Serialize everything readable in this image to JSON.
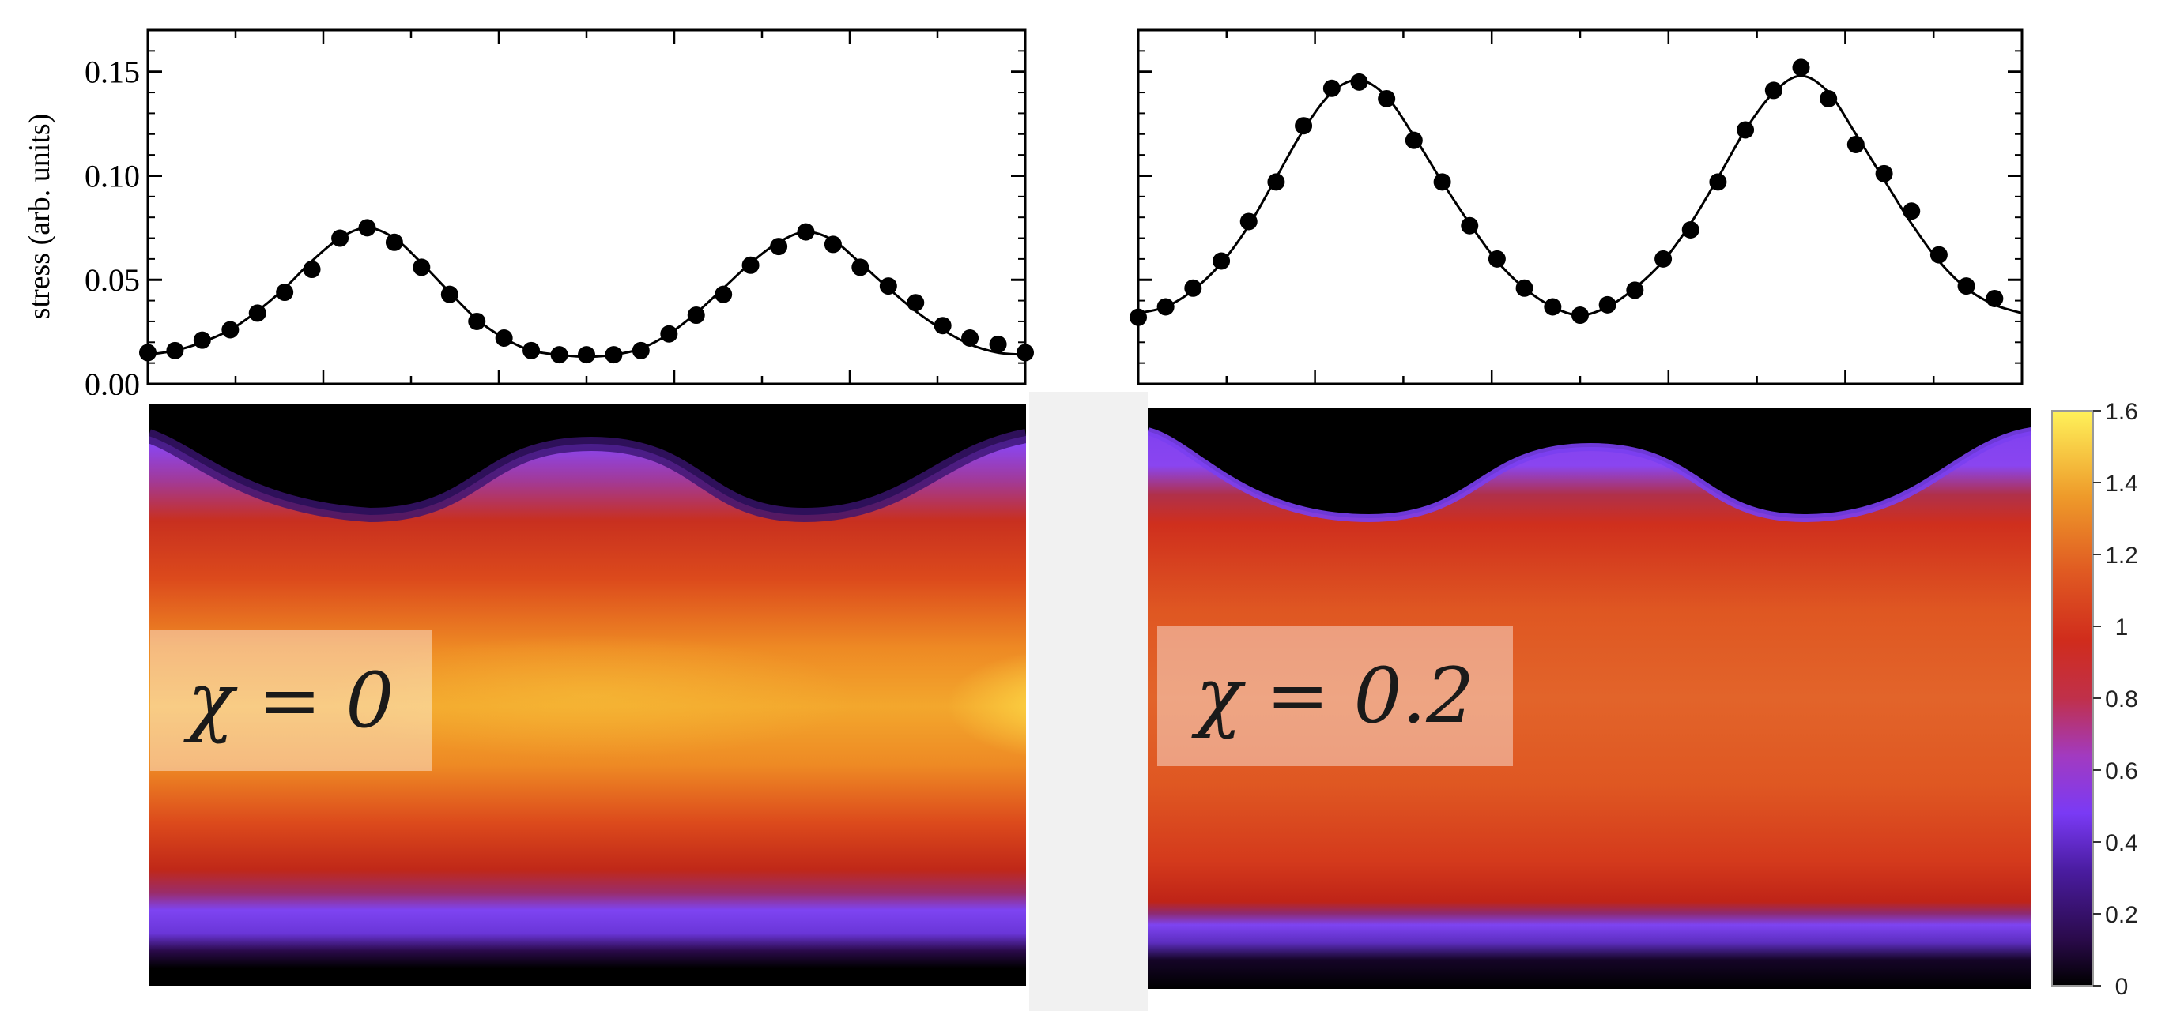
{
  "chart_data": [
    {
      "type": "scatter",
      "panel": "left-stress",
      "title": "",
      "xlabel": "",
      "ylabel": "stress (arb. units)",
      "xlim": [
        0,
        1
      ],
      "ylim": [
        0.0,
        0.17
      ],
      "yticks": [
        "0.00",
        "0.05",
        "0.10",
        "0.15"
      ],
      "grid": false,
      "series": [
        {
          "kind": "points",
          "x": [
            0.0,
            0.031,
            0.062,
            0.094,
            0.125,
            0.156,
            0.187,
            0.219,
            0.25,
            0.281,
            0.312,
            0.344,
            0.375,
            0.406,
            0.437,
            0.469,
            0.5,
            0.531,
            0.562,
            0.594,
            0.625,
            0.656,
            0.687,
            0.719,
            0.75,
            0.781,
            0.812,
            0.844,
            0.875,
            0.906,
            0.937,
            0.969,
            1.0
          ],
          "y": [
            0.015,
            0.016,
            0.021,
            0.026,
            0.034,
            0.044,
            0.055,
            0.07,
            0.075,
            0.068,
            0.056,
            0.043,
            0.03,
            0.022,
            0.016,
            0.014,
            0.014,
            0.014,
            0.016,
            0.024,
            0.033,
            0.043,
            0.057,
            0.066,
            0.073,
            0.067,
            0.056,
            0.047,
            0.039,
            0.028,
            0.022,
            0.019,
            0.015
          ]
        },
        {
          "kind": "line",
          "x": [
            0.0,
            0.031,
            0.062,
            0.094,
            0.125,
            0.156,
            0.187,
            0.219,
            0.25,
            0.281,
            0.312,
            0.344,
            0.375,
            0.406,
            0.437,
            0.469,
            0.5,
            0.531,
            0.562,
            0.594,
            0.625,
            0.656,
            0.687,
            0.719,
            0.75,
            0.781,
            0.812,
            0.844,
            0.875,
            0.906,
            0.937,
            0.969,
            1.0
          ],
          "y": [
            0.014,
            0.016,
            0.02,
            0.026,
            0.035,
            0.046,
            0.059,
            0.07,
            0.075,
            0.07,
            0.058,
            0.044,
            0.031,
            0.022,
            0.016,
            0.014,
            0.013,
            0.014,
            0.017,
            0.024,
            0.034,
            0.046,
            0.058,
            0.068,
            0.073,
            0.069,
            0.058,
            0.046,
            0.035,
            0.026,
            0.019,
            0.015,
            0.014
          ]
        }
      ]
    },
    {
      "type": "scatter",
      "panel": "right-stress",
      "title": "",
      "xlabel": "",
      "ylabel": "",
      "xlim": [
        0,
        1
      ],
      "ylim": [
        0.0,
        0.17
      ],
      "grid": false,
      "series": [
        {
          "kind": "points",
          "x": [
            0.0,
            0.031,
            0.062,
            0.094,
            0.125,
            0.156,
            0.187,
            0.219,
            0.25,
            0.281,
            0.312,
            0.344,
            0.375,
            0.406,
            0.437,
            0.469,
            0.5,
            0.531,
            0.562,
            0.594,
            0.625,
            0.656,
            0.687,
            0.719,
            0.75,
            0.781,
            0.812,
            0.844,
            0.875,
            0.906,
            0.937,
            0.969
          ],
          "y": [
            0.032,
            0.037,
            0.046,
            0.059,
            0.078,
            0.097,
            0.124,
            0.142,
            0.145,
            0.137,
            0.117,
            0.097,
            0.076,
            0.06,
            0.046,
            0.037,
            0.033,
            0.038,
            0.045,
            0.06,
            0.074,
            0.097,
            0.122,
            0.141,
            0.152,
            0.137,
            0.115,
            0.101,
            0.083,
            0.062,
            0.047,
            0.041
          ]
        },
        {
          "kind": "line",
          "x": [
            0.0,
            0.031,
            0.062,
            0.094,
            0.125,
            0.156,
            0.187,
            0.219,
            0.25,
            0.281,
            0.312,
            0.344,
            0.375,
            0.406,
            0.437,
            0.469,
            0.5,
            0.531,
            0.562,
            0.594,
            0.625,
            0.656,
            0.687,
            0.719,
            0.75,
            0.781,
            0.812,
            0.844,
            0.875,
            0.906,
            0.937,
            0.969,
            1.0
          ],
          "y": [
            0.034,
            0.037,
            0.045,
            0.058,
            0.076,
            0.099,
            0.122,
            0.14,
            0.146,
            0.138,
            0.119,
            0.097,
            0.077,
            0.059,
            0.046,
            0.037,
            0.033,
            0.037,
            0.046,
            0.059,
            0.077,
            0.099,
            0.122,
            0.14,
            0.148,
            0.14,
            0.12,
            0.098,
            0.077,
            0.059,
            0.046,
            0.038,
            0.034
          ]
        }
      ]
    },
    {
      "type": "heatmap",
      "panel": "left-heatmap",
      "annotation": "χ = 0",
      "colorscale": [
        "#000000",
        "#2a0a4a",
        "#7a3af5",
        "#c0304a",
        "#d53a1c",
        "#eb7a1e",
        "#f5c540",
        "#fff25a"
      ],
      "zlim": [
        0,
        1.6
      ]
    },
    {
      "type": "heatmap",
      "panel": "right-heatmap",
      "annotation": "χ = 0.2",
      "colorscale": [
        "#000000",
        "#2a0a4a",
        "#7a3af5",
        "#c0304a",
        "#d53a1c",
        "#eb7a1e",
        "#f5c540",
        "#fff25a"
      ],
      "zlim": [
        0,
        1.6
      ],
      "colorbar": {
        "ticks": [
          "0",
          "0.2",
          "0.4",
          "0.6",
          "0.8",
          "1",
          "1.2",
          "1.4",
          "1.6"
        ],
        "values": [
          0,
          0.2,
          0.4,
          0.6,
          0.8,
          1.0,
          1.2,
          1.4,
          1.6
        ]
      }
    }
  ]
}
